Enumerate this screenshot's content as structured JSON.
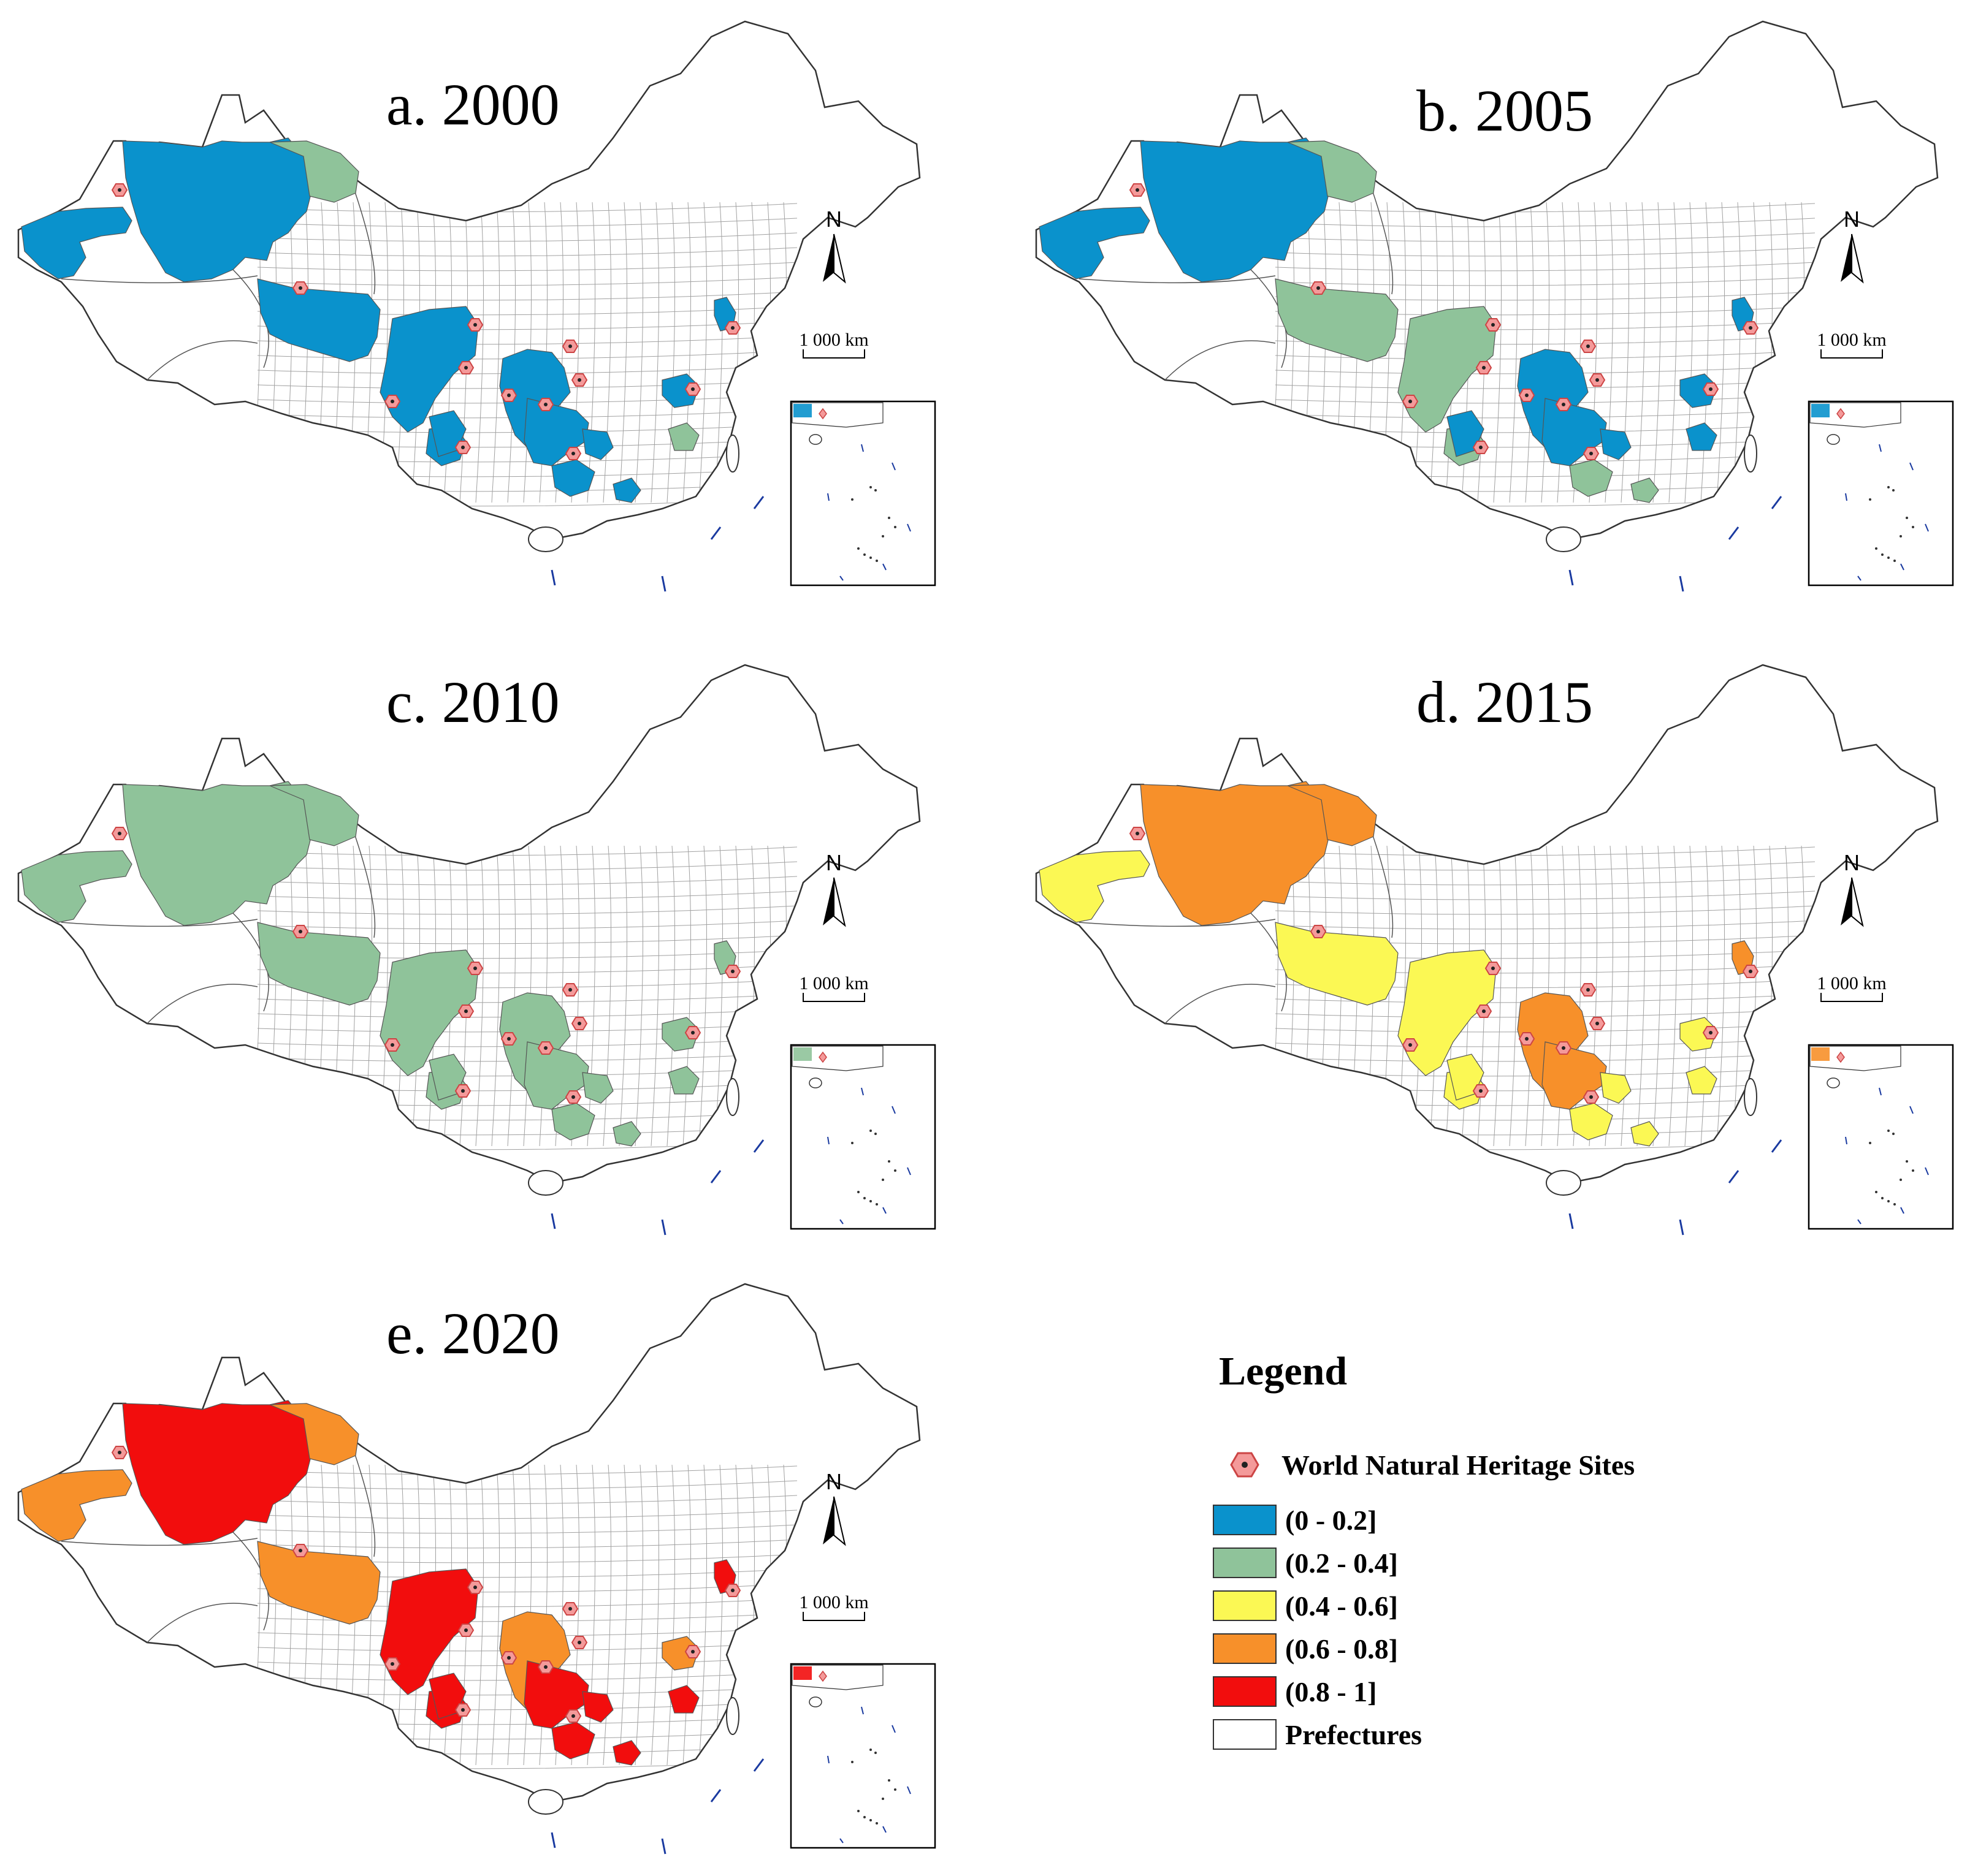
{
  "panels": [
    {
      "title": "a. 2000",
      "year": 2000,
      "class_index": 0,
      "main_color": "#0a92cc",
      "secondary_color": "#8fc39a"
    },
    {
      "title": "b. 2005",
      "year": 2005,
      "class_index": 0,
      "main_color": "#0a92cc",
      "secondary_color": "#8fc39a"
    },
    {
      "title": "c. 2010",
      "year": 2010,
      "class_index": 1,
      "main_color": "#8fc39a",
      "secondary_color": "#8fc39a"
    },
    {
      "title": "d. 2015",
      "year": 2015,
      "class_index": 3,
      "main_color": "#f7902a",
      "secondary_color": "#fbf854"
    },
    {
      "title": "e. 2020",
      "year": 2020,
      "class_index": 4,
      "main_color": "#f20d0d",
      "secondary_color": "#f7902a"
    }
  ],
  "north_arrow": {
    "label": "N"
  },
  "scale_bar": {
    "label": "1 000 km"
  },
  "legend": {
    "title": "Legend",
    "heritage_label": "World Natural Heritage Sites",
    "classes": [
      {
        "label": "(0 - 0.2]",
        "color": "#0a92cc"
      },
      {
        "label": "(0.2 - 0.4]",
        "color": "#8fc39a"
      },
      {
        "label": "(0.4 - 0.6]",
        "color": "#fbf854"
      },
      {
        "label": "(0.6 - 0.8]",
        "color": "#f7902a"
      },
      {
        "label": "(0.8 - 1]",
        "color": "#f20d0d"
      }
    ],
    "prefectures_label": "Prefectures",
    "prefectures_color": "#ffffff"
  },
  "heritage_marker_color": "#f49a9a"
}
